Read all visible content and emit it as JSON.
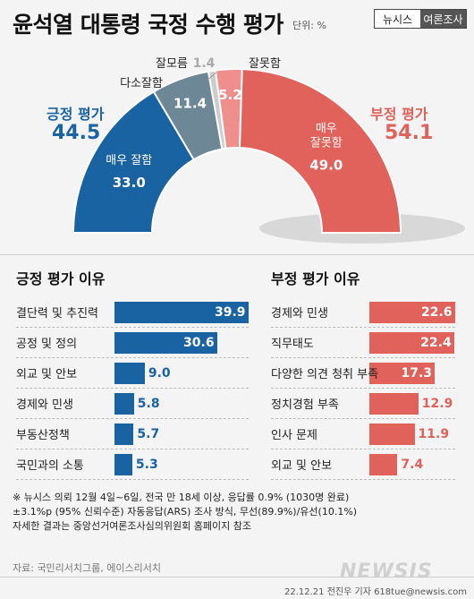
{
  "title": "윤석열 대통령 국정 수행 평가",
  "unit": "단위: %",
  "brand": {
    "left": "뉴시스",
    "right": "여론조사"
  },
  "positive": {
    "label": "긍정 평가",
    "value": "44.5"
  },
  "negative": {
    "label": "부정 평가",
    "value": "54.1"
  },
  "colors": {
    "positive_dark": "#1a63a3",
    "positive_light": "#6d8797",
    "negative_light": "#ef8f8b",
    "negative_dark": "#e0625b",
    "unknown": "#cccccc"
  },
  "chart_data": [
    {
      "type": "pie",
      "title": "윤석열 대통령 국정 수행 평가",
      "subtitle": "단위: %",
      "categories": [
        "매우 잘함",
        "다소잘함",
        "잘모름",
        "잘못함",
        "매우 잘못함"
      ],
      "values": [
        33.0,
        11.4,
        1.4,
        5.2,
        49.0
      ],
      "labels": [
        "매우 잘함",
        "다소잘함",
        "잘모름",
        "잘못함",
        "매우\n잘못함"
      ],
      "value_labels": [
        "33.0",
        "11.4",
        "1.4",
        "5.2",
        "49.0"
      ]
    },
    {
      "type": "bar",
      "title": "긍정 평가 이유",
      "categories": [
        "결단력 및 추진력",
        "공정 및 정의",
        "외교 및 안보",
        "경제와 민생",
        "부동산정책",
        "국민과의 소통"
      ],
      "values": [
        39.9,
        30.6,
        9.0,
        5.8,
        5.7,
        5.3
      ],
      "value_labels": [
        "39.9",
        "30.6",
        "9.0",
        "5.8",
        "5.7",
        "5.3"
      ]
    },
    {
      "type": "bar",
      "title": "부정 평가 이유",
      "categories": [
        "경제와 민생",
        "직무태도",
        "다양한 의견 청취 부족",
        "정치경험 부족",
        "인사 문제",
        "외교 및 안보"
      ],
      "values": [
        22.6,
        22.4,
        17.3,
        12.9,
        11.9,
        7.4
      ],
      "value_labels": [
        "22.6",
        "22.4",
        "17.3",
        "12.9",
        "11.9",
        "7.4"
      ]
    }
  ],
  "notes": [
    "※ 뉴시스 의뢰 12월 4일~6일, 전국 만 18세 이상, 응답률 0.9% (1030명 완료)",
    "±3.1%p (95% 신뢰수준) 자동응답(ARS) 조사 방식, 무선(89.9%)/유선(10.1%)",
    "자세한 결과는 중앙선거여론조사심의위원회 홈페이지 참조"
  ],
  "source": "자료: 국민리서치그룹, 에이스리서치",
  "watermark": "NEWSIS",
  "credit": "22.12.21 전진우 기자 618tue@newsis.com"
}
